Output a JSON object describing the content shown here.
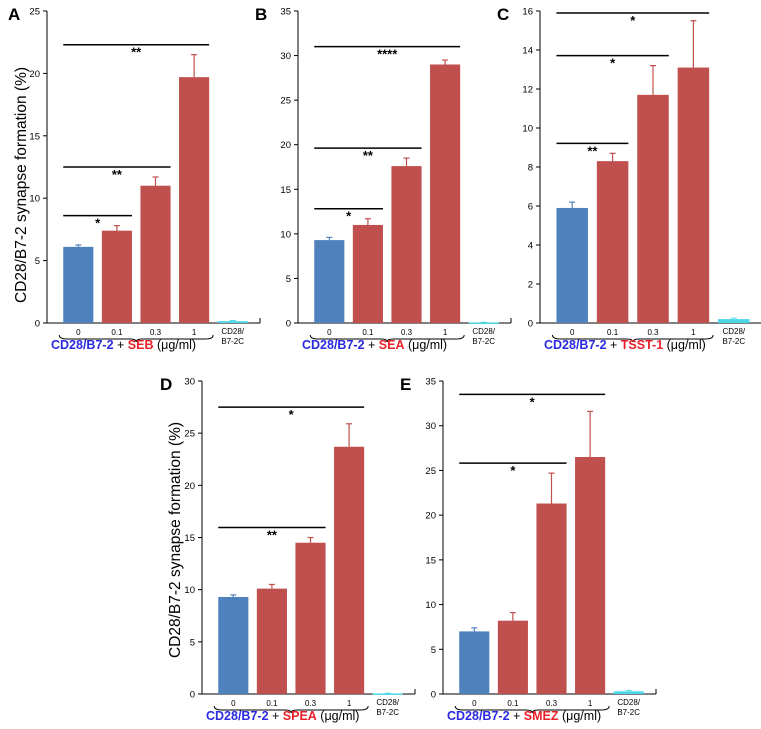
{
  "y_axis_label": "CD28/B7-2 synapse formation (%)",
  "colors": {
    "base": "#4f81bd",
    "toxin": "#c0504d",
    "control": "#4bd8e6",
    "label_blue": "#2a2ae0",
    "label_red": "#e8202a"
  },
  "chart_data": [
    {
      "panel": "A",
      "type": "bar",
      "categories": [
        "0",
        "0.1",
        "0.3",
        "1"
      ],
      "values": [
        6.1,
        7.4,
        11.0,
        19.7
      ],
      "errors": [
        0.15,
        0.4,
        0.7,
        1.8
      ],
      "control": {
        "label_line1": "CD28/",
        "label_line2": "B7-2C",
        "value": 0.15,
        "error": 0.05
      },
      "ylim": [
        0,
        25
      ],
      "yticks": [
        0,
        5,
        10,
        15,
        20,
        25
      ],
      "xlabel": {
        "part1": "CD28/B7-2",
        "plus": " + ",
        "toxin": "SEB",
        "unit": " (μg/ml)"
      },
      "significance": [
        {
          "from": 0,
          "to": 1,
          "stars": "*"
        },
        {
          "from": 0,
          "to": 2,
          "stars": "**"
        },
        {
          "from": 0,
          "to": 3,
          "stars": "**"
        }
      ]
    },
    {
      "panel": "B",
      "type": "bar",
      "categories": [
        "0",
        "0.1",
        "0.3",
        "1"
      ],
      "values": [
        9.3,
        11.0,
        17.6,
        29.0
      ],
      "errors": [
        0.3,
        0.7,
        0.9,
        0.5
      ],
      "control": {
        "label_line1": "CD28/",
        "label_line2": "B7-2C",
        "value": 0.05,
        "error": 0.03
      },
      "ylim": [
        0,
        35
      ],
      "yticks": [
        0,
        5,
        10,
        15,
        20,
        25,
        30,
        35
      ],
      "xlabel": {
        "part1": "CD28/B7-2",
        "plus": " + ",
        "toxin": "SEA",
        "unit": " (μg/ml)"
      },
      "significance": [
        {
          "from": 0,
          "to": 1,
          "stars": "*"
        },
        {
          "from": 0,
          "to": 2,
          "stars": "**"
        },
        {
          "from": 0,
          "to": 3,
          "stars": "****"
        }
      ]
    },
    {
      "panel": "C",
      "type": "bar",
      "categories": [
        "0",
        "0.1",
        "0.3",
        "1"
      ],
      "values": [
        5.9,
        8.3,
        11.7,
        13.1
      ],
      "errors": [
        0.3,
        0.4,
        1.5,
        2.4
      ],
      "control": {
        "label_line1": "CD28/",
        "label_line2": "B7-2C",
        "value": 0.2,
        "error": 0.05
      },
      "ylim": [
        0,
        16
      ],
      "yticks": [
        0,
        2,
        4,
        6,
        8,
        10,
        12,
        14,
        16
      ],
      "xlabel": {
        "part1": "CD28/B7-2",
        "plus": " + ",
        "toxin": "TSST-1",
        "unit": " (μg/ml)"
      },
      "significance": [
        {
          "from": 0,
          "to": 1,
          "stars": "**"
        },
        {
          "from": 0,
          "to": 2,
          "stars": "*"
        },
        {
          "from": 0,
          "to": 3,
          "stars": "*"
        }
      ]
    },
    {
      "panel": "D",
      "type": "bar",
      "categories": [
        "0",
        "0.1",
        "0.3",
        "1"
      ],
      "values": [
        9.3,
        10.1,
        14.5,
        23.7
      ],
      "errors": [
        0.2,
        0.4,
        0.5,
        2.2
      ],
      "control": {
        "label_line1": "CD28/",
        "label_line2": "B7-2C",
        "value": 0.05,
        "error": 0.02
      },
      "ylim": [
        0,
        30
      ],
      "yticks": [
        0,
        5,
        10,
        15,
        20,
        25,
        30
      ],
      "xlabel": {
        "part1": "CD28/B7-2",
        "plus": " + ",
        "toxin": "SPEA",
        "unit": " (μg/ml)"
      },
      "significance": [
        {
          "from": 0,
          "to": 2,
          "stars": "**"
        },
        {
          "from": 0,
          "to": 3,
          "stars": "*"
        }
      ]
    },
    {
      "panel": "E",
      "type": "bar",
      "categories": [
        "0",
        "0.1",
        "0.3",
        "1"
      ],
      "values": [
        7.0,
        8.2,
        21.3,
        26.5
      ],
      "errors": [
        0.4,
        0.9,
        3.4,
        5.1
      ],
      "control": {
        "label_line1": "CD28/",
        "label_line2": "B7-2C",
        "value": 0.3,
        "error": 0.1
      },
      "ylim": [
        0,
        35
      ],
      "yticks": [
        0,
        5,
        10,
        15,
        20,
        25,
        30,
        35
      ],
      "xlabel": {
        "part1": "CD28/B7-2",
        "plus": " + ",
        "toxin": "SMEZ",
        "unit": " (μg/ml)"
      },
      "significance": [
        {
          "from": 0,
          "to": 2,
          "stars": "*"
        },
        {
          "from": 0,
          "to": 3,
          "stars": "*"
        }
      ]
    }
  ]
}
